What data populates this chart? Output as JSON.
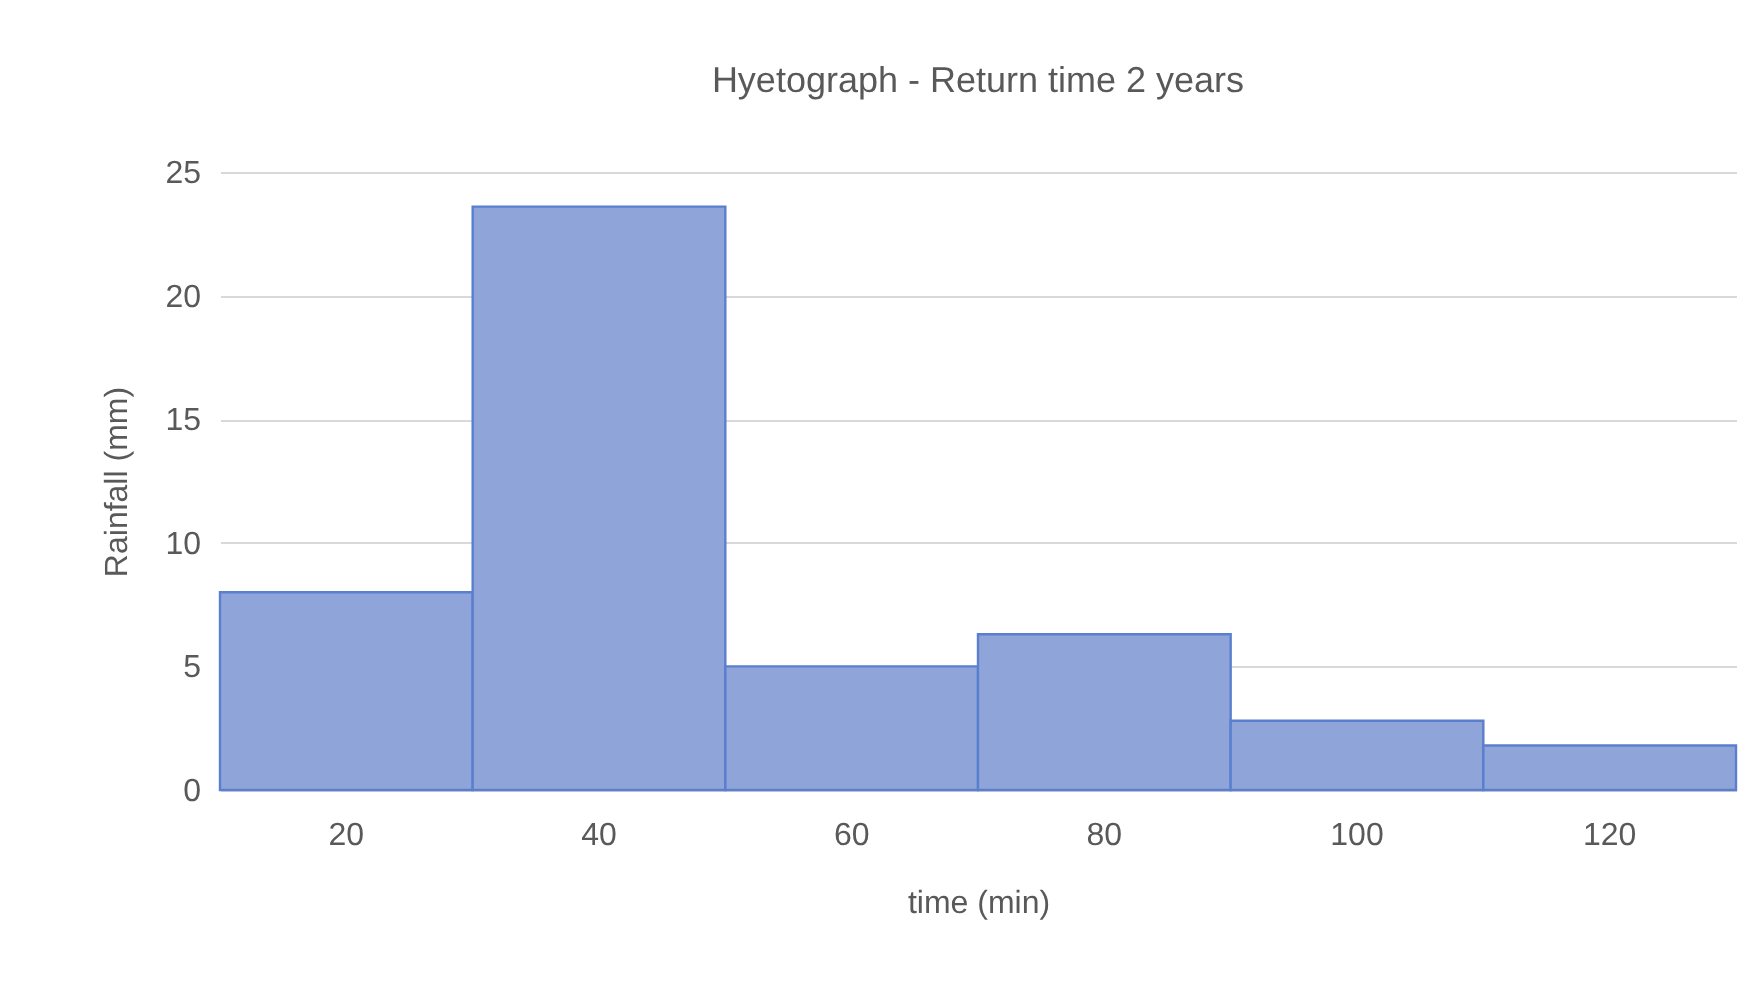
{
  "chart_data": {
    "type": "bar",
    "title": "Hyetograph - Return time 2 years",
    "xlabel": "time (min)",
    "ylabel": "Rainfall (mm)",
    "categories": [
      "20",
      "40",
      "60",
      "80",
      "100",
      "120"
    ],
    "values": [
      8.0,
      23.6,
      5.0,
      6.3,
      2.8,
      1.8
    ],
    "color": "#8fa5da",
    "ylim": [
      0,
      25
    ],
    "yticks": [
      0,
      5,
      10,
      15,
      20,
      25
    ],
    "grid": "y"
  }
}
